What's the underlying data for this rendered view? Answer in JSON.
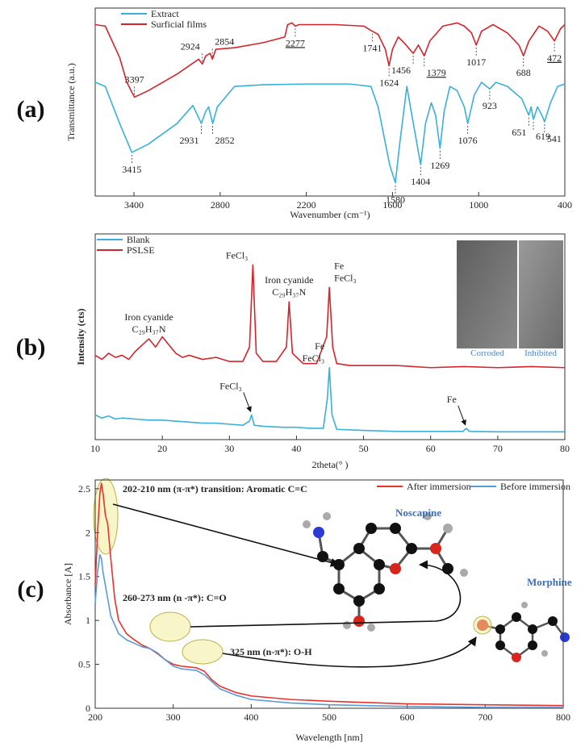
{
  "chart_data": [
    {
      "type": "line",
      "panel_label": "(a)",
      "x_label": "Wavenumber (cm⁻¹)",
      "y_label": "Transmittance (a.u.)",
      "xlim": [
        3670,
        400
      ],
      "ylim": [
        0,
        100
      ],
      "xticks": [
        3400,
        2800,
        2200,
        1600,
        1000,
        400
      ],
      "legend": "upper left",
      "series": [
        {
          "name": "Extract",
          "color": "#3ab0d9",
          "x": [
            3670,
            3600,
            3500,
            3415,
            3300,
            3100,
            2990,
            2931,
            2900,
            2880,
            2852,
            2820,
            2700,
            2500,
            2200,
            1900,
            1750,
            1700,
            1620,
            1580,
            1550,
            1500,
            1460,
            1404,
            1370,
            1330,
            1300,
            1269,
            1240,
            1200,
            1150,
            1100,
            1076,
            1030,
            980,
            923,
            880,
            800,
            700,
            651,
            635,
            619,
            590,
            560,
            541,
            500,
            450,
            400
          ],
          "values": [
            60.5,
            58.3,
            38.6,
            23.2,
            27.6,
            38.6,
            48.2,
            38.6,
            45.2,
            47.4,
            38.6,
            47.4,
            58.3,
            59.2,
            59.6,
            59.6,
            58.3,
            47.4,
            16.7,
            7.0,
            27.6,
            58.3,
            40.8,
            16.7,
            38.6,
            49.6,
            43.0,
            25.4,
            45.2,
            58.3,
            56.1,
            47.4,
            38.6,
            53.9,
            60.5,
            57.0,
            60.5,
            58.3,
            51.8,
            43.0,
            47.4,
            40.8,
            47.4,
            43.0,
            39.5,
            49.6,
            58.3,
            59.6
          ]
        },
        {
          "name": "Surficial films",
          "color": "#d3262c",
          "x": [
            3670,
            3600,
            3500,
            3450,
            3397,
            3300,
            3100,
            2950,
            2924,
            2900,
            2870,
            2854,
            2830,
            2700,
            2500,
            2350,
            2330,
            2300,
            2277,
            2250,
            2000,
            1800,
            1741,
            1700,
            1650,
            1624,
            1600,
            1560,
            1520,
            1456,
            1420,
            1379,
            1340,
            1250,
            1150,
            1100,
            1050,
            1017,
            980,
            900,
            800,
            720,
            688,
            650,
            580,
            520,
            472,
            430,
            400
          ],
          "values": [
            91.2,
            90.4,
            73.7,
            60.5,
            52.6,
            56.1,
            64.9,
            72.8,
            70.2,
            74.6,
            75.9,
            72.8,
            78.1,
            78.9,
            81.6,
            84.6,
            91.2,
            92.1,
            90.4,
            91.2,
            91.2,
            90.4,
            87.7,
            86.0,
            78.1,
            69.3,
            78.1,
            84.6,
            81.6,
            75.9,
            80.3,
            74.6,
            82.5,
            90.4,
            92.1,
            90.4,
            86.8,
            80.3,
            87.7,
            91.2,
            86.8,
            80.3,
            74.6,
            82.5,
            90.4,
            87.7,
            82.5,
            89.0,
            91.2
          ]
        }
      ],
      "annotations": [
        {
          "text": "3397",
          "x": 3397,
          "series": 1,
          "side": "above"
        },
        {
          "text": "2924",
          "x": 2924,
          "series": 1,
          "side": "above",
          "anchor": "end"
        },
        {
          "text": "2854",
          "x": 2854,
          "series": 1,
          "side": "above",
          "anchor": "start"
        },
        {
          "text": "2277",
          "x": 2277,
          "series": 1,
          "side": "below",
          "underline": true
        },
        {
          "text": "1741",
          "x": 1741,
          "series": 1,
          "side": "below"
        },
        {
          "text": "1624",
          "x": 1624,
          "series": 1,
          "side": "below"
        },
        {
          "text": "1456",
          "x": 1456,
          "series": 1,
          "side": "below",
          "anchor": "end"
        },
        {
          "text": "1379",
          "x": 1379,
          "series": 1,
          "side": "below",
          "anchor": "start",
          "underline": true
        },
        {
          "text": "1017",
          "x": 1017,
          "series": 1,
          "side": "below"
        },
        {
          "text": "688",
          "x": 688,
          "series": 1,
          "side": "below"
        },
        {
          "text": "472",
          "x": 472,
          "series": 1,
          "side": "below",
          "underline": true
        },
        {
          "text": "3415",
          "x": 3415,
          "series": 0,
          "side": "below"
        },
        {
          "text": "2931",
          "x": 2931,
          "series": 0,
          "side": "below",
          "anchor": "end"
        },
        {
          "text": "2852",
          "x": 2852,
          "series": 0,
          "side": "below",
          "anchor": "start"
        },
        {
          "text": "1580",
          "x": 1580,
          "series": 0,
          "side": "below"
        },
        {
          "text": "1404",
          "x": 1404,
          "series": 0,
          "side": "below"
        },
        {
          "text": "1269",
          "x": 1269,
          "series": 0,
          "side": "below"
        },
        {
          "text": "1076",
          "x": 1076,
          "series": 0,
          "side": "below"
        },
        {
          "text": "923",
          "x": 923,
          "series": 0,
          "side": "below"
        },
        {
          "text": "651",
          "x": 651,
          "series": 0,
          "side": "below",
          "anchor": "end"
        },
        {
          "text": "619",
          "x": 619,
          "series": 0,
          "side": "below",
          "anchor": "start"
        },
        {
          "text": "541",
          "x": 541,
          "series": 0,
          "side": "below",
          "anchor": "start"
        }
      ]
    },
    {
      "type": "line",
      "panel_label": "(b)",
      "x_label": "2theta(° )",
      "y_label": "Intensity (cts)",
      "xlim": [
        10,
        80
      ],
      "ylim": [
        0,
        100
      ],
      "xticks": [
        10,
        20,
        30,
        40,
        50,
        60,
        70,
        80
      ],
      "legend": "upper left",
      "series": [
        {
          "name": "Blank",
          "color": "#3ab0d9",
          "x": [
            10,
            11,
            12,
            13,
            14,
            16,
            18,
            20,
            22,
            24,
            26,
            28,
            30,
            32,
            33,
            33.3,
            33.7,
            35,
            38,
            40,
            42,
            44,
            44.6,
            44.9,
            45.3,
            46,
            50,
            55,
            60,
            64.8,
            65.3,
            65.8,
            70,
            75,
            80
          ],
          "values": [
            12,
            10.5,
            11.5,
            10,
            10.5,
            10,
            9.5,
            9.5,
            9,
            8.5,
            8,
            8,
            7.5,
            7,
            9,
            12,
            7,
            6.5,
            6,
            6,
            5.5,
            5.5,
            20,
            35,
            12,
            5,
            4.5,
            4,
            4,
            4,
            5.5,
            4,
            3.8,
            3.8,
            3.8
          ]
        },
        {
          "name": "PSLSE",
          "color": "#d3262c",
          "x": [
            10,
            11,
            12,
            13,
            14,
            15,
            16,
            17,
            18,
            19,
            20,
            21,
            22,
            23,
            24,
            26,
            28,
            30,
            32,
            33,
            33.5,
            34,
            35,
            37,
            38.5,
            38.9,
            39.4,
            41,
            43,
            44.5,
            44.9,
            45.4,
            46,
            48,
            50,
            55,
            60,
            65,
            70,
            75,
            80
          ],
          "values": [
            41,
            39,
            42,
            40,
            41,
            39,
            43,
            46,
            49,
            45,
            50,
            46,
            42,
            40,
            41,
            39,
            40,
            38,
            38,
            45,
            85,
            42,
            38,
            38,
            45,
            67,
            42,
            37,
            37,
            50,
            74,
            45,
            37,
            36,
            36,
            36,
            35,
            35.5,
            35,
            35.5,
            35
          ]
        }
      ],
      "annotations": [
        {
          "lines": [
            "Iron cyanide",
            "C₂₉H₃₇N"
          ],
          "x": 18,
          "series": 1
        },
        {
          "lines": [
            "FeCl₃"
          ],
          "x": 33.5,
          "series": 1,
          "anchor": "end"
        },
        {
          "lines": [
            "Iron cyanide",
            "C₂₉H₃₇N"
          ],
          "x": 38.9,
          "series": 1
        },
        {
          "lines": [
            "Fe",
            "FeCl₃"
          ],
          "x": 44.9,
          "series": 1,
          "anchor": "start"
        },
        {
          "lines": [
            "FeCl₃"
          ],
          "x": 33.3,
          "series": 0,
          "anchor": "end",
          "arrow": true
        },
        {
          "lines": [
            "Fe",
            "FeCl₃"
          ],
          "x": 44.9,
          "series": 0,
          "anchor": "end"
        },
        {
          "lines": [
            "Fe"
          ],
          "x": 65.3,
          "series": 0,
          "anchor": "end",
          "arrow": true
        }
      ],
      "inset_labels": [
        "Corroded",
        "Inhibited"
      ]
    },
    {
      "type": "line",
      "panel_label": "(c)",
      "x_label": "Wavelength [nm]",
      "y_label": "Absorbance [A]",
      "xlim": [
        200,
        800
      ],
      "ylim": [
        0,
        2.6
      ],
      "xticks": [
        200,
        300,
        400,
        500,
        600,
        700,
        800
      ],
      "yticks": [
        0,
        0.5,
        1,
        1.5,
        2,
        2.5
      ],
      "legend": "upper right",
      "series": [
        {
          "name": "After immersion",
          "color": "#e8322c",
          "x": [
            200,
            203,
            206,
            208,
            210,
            213,
            216,
            220,
            225,
            230,
            240,
            250,
            260,
            270,
            280,
            290,
            300,
            310,
            320,
            330,
            340,
            350,
            360,
            380,
            400,
            450,
            500,
            600,
            700,
            800
          ],
          "values": [
            1.4,
            2.0,
            2.45,
            2.56,
            2.45,
            2.2,
            2.1,
            1.7,
            1.25,
            1.0,
            0.85,
            0.78,
            0.72,
            0.68,
            0.62,
            0.55,
            0.5,
            0.48,
            0.47,
            0.46,
            0.42,
            0.32,
            0.25,
            0.18,
            0.14,
            0.1,
            0.08,
            0.05,
            0.04,
            0.03
          ]
        },
        {
          "name": "Before immersion",
          "color": "#5b9bd5",
          "x": [
            200,
            203,
            206,
            208,
            210,
            215,
            220,
            230,
            240,
            250,
            260,
            270,
            280,
            290,
            300,
            310,
            320,
            330,
            340,
            350,
            360,
            380,
            400,
            450,
            500,
            600,
            700,
            800
          ],
          "values": [
            1.2,
            1.55,
            1.75,
            1.7,
            1.55,
            1.3,
            1.05,
            0.85,
            0.78,
            0.74,
            0.7,
            0.68,
            0.63,
            0.55,
            0.48,
            0.45,
            0.44,
            0.43,
            0.38,
            0.3,
            0.22,
            0.15,
            0.1,
            0.06,
            0.04,
            0.02,
            0.01,
            0.01
          ]
        }
      ],
      "annotations": [
        "202-210 nm (π-π*) transition: Aromatic C=C",
        "260-273 nm (n -π*): C=O",
        "325 nm (n-π*): O-H",
        "Noscapine",
        "Morphine"
      ]
    }
  ]
}
